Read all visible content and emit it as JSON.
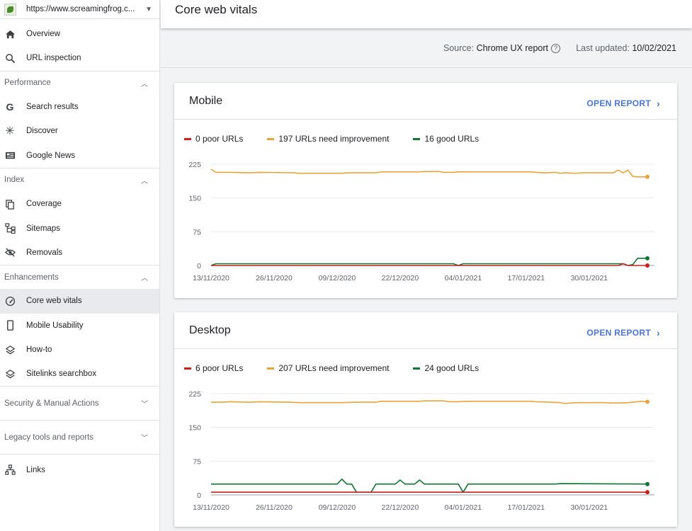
{
  "property": {
    "url": "https://www.screamingfrog.c..."
  },
  "nav_top": [
    {
      "label": "Overview",
      "icon": "home-icon"
    },
    {
      "label": "URL inspection",
      "icon": "search-icon"
    }
  ],
  "sections": {
    "performance": {
      "label": "Performance",
      "items": [
        {
          "label": "Search results",
          "icon": "google-g-icon"
        },
        {
          "label": "Discover",
          "icon": "asterisk-icon"
        },
        {
          "label": "Google News",
          "icon": "news-icon"
        }
      ]
    },
    "index": {
      "label": "Index",
      "items": [
        {
          "label": "Coverage",
          "icon": "copy-icon"
        },
        {
          "label": "Sitemaps",
          "icon": "sitemap-icon"
        },
        {
          "label": "Removals",
          "icon": "eye-off-icon"
        }
      ]
    },
    "enhancements": {
      "label": "Enhancements",
      "items": [
        {
          "label": "Core web vitals",
          "icon": "gauge-icon"
        },
        {
          "label": "Mobile Usability",
          "icon": "phone-icon"
        },
        {
          "label": "How-to",
          "icon": "layers-icon"
        },
        {
          "label": "Sitelinks searchbox",
          "icon": "layers-icon"
        }
      ]
    },
    "security": {
      "label": "Security & Manual Actions"
    },
    "legacy": {
      "label": "Legacy tools and reports"
    },
    "links": {
      "label": "Links",
      "icon": "links-icon"
    }
  },
  "header": {
    "title": "Core web vitals"
  },
  "meta": {
    "source_label": "Source:",
    "source_value": "Chrome UX report",
    "updated_label": "Last updated:",
    "updated_value": "10/02/2021"
  },
  "colors": {
    "poor": "#c5221f",
    "needs_improvement": "#e8a33d",
    "good": "#137333",
    "link": "#4a76d8"
  },
  "cards": {
    "mobile": {
      "title": "Mobile",
      "open_report": "OPEN REPORT",
      "legend": {
        "poor": "0 poor URLs",
        "ni": "197 URLs need improvement",
        "good": "16 good URLs"
      }
    },
    "desktop": {
      "title": "Desktop",
      "open_report": "OPEN REPORT",
      "legend": {
        "poor": "6 poor URLs",
        "ni": "207 URLs need improvement",
        "good": "24 good URLs"
      }
    }
  },
  "chart_data": [
    {
      "type": "line",
      "title": "Mobile",
      "x_tick_labels": [
        "13/11/2020",
        "26/11/2020",
        "09/12/2020",
        "22/12/2020",
        "04/01/2021",
        "17/01/2021",
        "30/01/2021"
      ],
      "x_range": [
        "13/11/2020",
        "09/02/2021"
      ],
      "y_ticks": [
        0,
        75,
        150,
        225
      ],
      "ylim": [
        0,
        225
      ],
      "grid": true,
      "series": [
        {
          "name": "197 URLs need improvement",
          "color": "#e8a33d",
          "points": [
            [
              0,
              214
            ],
            [
              1,
              207
            ],
            [
              4,
              207
            ],
            [
              8,
              206
            ],
            [
              10,
              207
            ],
            [
              17,
              206
            ],
            [
              18,
              205
            ],
            [
              27,
              205
            ],
            [
              28,
              206
            ],
            [
              34,
              206
            ],
            [
              35,
              208
            ],
            [
              43,
              208
            ],
            [
              44,
              209
            ],
            [
              47,
              209
            ],
            [
              48,
              207
            ],
            [
              50,
              207
            ],
            [
              51,
              208
            ],
            [
              66,
              208
            ],
            [
              67,
              207
            ],
            [
              69,
              206
            ],
            [
              71,
              207
            ],
            [
              72,
              205
            ],
            [
              73,
              206
            ],
            [
              75,
              205
            ],
            [
              77,
              206
            ],
            [
              83,
              206
            ],
            [
              84,
              212
            ],
            [
              85,
              206
            ],
            [
              86,
              212
            ],
            [
              87,
              198
            ],
            [
              88,
              197
            ],
            [
              90,
              197
            ]
          ]
        },
        {
          "name": "16 good URLs",
          "color": "#137333",
          "points": [
            [
              0,
              0
            ],
            [
              1,
              4
            ],
            [
              50,
              4
            ],
            [
              51,
              0
            ],
            [
              52,
              4
            ],
            [
              85,
              4
            ],
            [
              86,
              0
            ],
            [
              87,
              2
            ],
            [
              88,
              16
            ],
            [
              90,
              16
            ]
          ]
        },
        {
          "name": "0 poor URLs",
          "color": "#c5221f",
          "points": [
            [
              0,
              0
            ],
            [
              84,
              0
            ],
            [
              85,
              4
            ],
            [
              86,
              0
            ],
            [
              90,
              0
            ]
          ]
        }
      ]
    },
    {
      "type": "line",
      "title": "Desktop",
      "x_tick_labels": [
        "13/11/2020",
        "26/11/2020",
        "09/12/2020",
        "22/12/2020",
        "04/01/2021",
        "17/01/2021",
        "30/01/2021"
      ],
      "x_range": [
        "13/11/2020",
        "09/02/2021"
      ],
      "y_ticks": [
        0,
        75,
        150,
        225
      ],
      "ylim": [
        0,
        225
      ],
      "grid": true,
      "series": [
        {
          "name": "207 URLs need improvement",
          "color": "#e8a33d",
          "points": [
            [
              0,
              206
            ],
            [
              2,
              206
            ],
            [
              4,
              207
            ],
            [
              8,
              206
            ],
            [
              10,
              207
            ],
            [
              16,
              206
            ],
            [
              18,
              205
            ],
            [
              27,
              205
            ],
            [
              30,
              206
            ],
            [
              34,
              206
            ],
            [
              35,
              208
            ],
            [
              43,
              208
            ],
            [
              44,
              209
            ],
            [
              48,
              209
            ],
            [
              49,
              207
            ],
            [
              51,
              207
            ],
            [
              53,
              208
            ],
            [
              66,
              208
            ],
            [
              67,
              207
            ],
            [
              70,
              206
            ],
            [
              72,
              205
            ],
            [
              73,
              203
            ],
            [
              74,
              204
            ],
            [
              76,
              205
            ],
            [
              81,
              205
            ],
            [
              83,
              204
            ],
            [
              86,
              205
            ],
            [
              89,
              208
            ],
            [
              90,
              207
            ]
          ]
        },
        {
          "name": "24 good URLs",
          "color": "#137333",
          "points": [
            [
              0,
              24
            ],
            [
              26,
              24
            ],
            [
              27,
              35
            ],
            [
              28,
              24
            ],
            [
              29,
              24
            ],
            [
              30,
              6
            ],
            [
              33,
              6
            ],
            [
              34,
              24
            ],
            [
              38,
              24
            ],
            [
              39,
              33
            ],
            [
              40,
              24
            ],
            [
              42,
              24
            ],
            [
              43,
              33
            ],
            [
              44,
              24
            ],
            [
              51,
              24
            ],
            [
              52,
              6
            ],
            [
              53,
              24
            ],
            [
              71,
              24
            ],
            [
              72,
              25
            ],
            [
              90,
              24
            ]
          ]
        },
        {
          "name": "6 poor URLs",
          "color": "#c5221f",
          "points": [
            [
              0,
              6
            ],
            [
              90,
              6
            ]
          ]
        }
      ]
    }
  ]
}
